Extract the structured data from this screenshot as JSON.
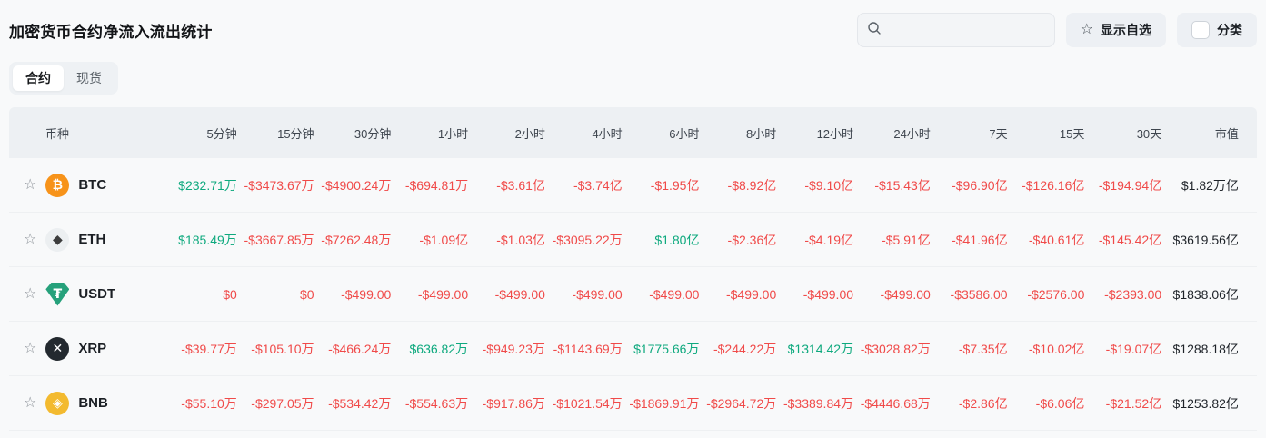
{
  "header": {
    "title": "加密货币合约净流入流出统计",
    "search": {
      "placeholder": "",
      "value": ""
    },
    "favorites_button": {
      "label": "显示自选",
      "icon": "star-outline"
    },
    "category_button": {
      "label": "分类",
      "checkbox_checked": false
    }
  },
  "tabs": [
    {
      "label": "合约",
      "active": true
    },
    {
      "label": "现货",
      "active": false
    }
  ],
  "colors": {
    "up": "#0EA97E",
    "down": "#F04A49",
    "neutral": "#1E2329"
  },
  "table": {
    "columns": [
      "币种",
      "5分钟",
      "15分钟",
      "30分钟",
      "1小时",
      "2小时",
      "4小时",
      "6小时",
      "8小时",
      "12小时",
      "24小时",
      "7天",
      "15天",
      "30天",
      "市值"
    ],
    "rows": [
      {
        "symbol": "BTC",
        "icon": {
          "glyph": "₿",
          "bg": "#F7931A",
          "fg": "#ffffff",
          "shape": "circle"
        },
        "values": [
          {
            "text": "$232.71万",
            "trend": "up"
          },
          {
            "text": "-$3473.67万",
            "trend": "down"
          },
          {
            "text": "-$4900.24万",
            "trend": "down"
          },
          {
            "text": "-$694.81万",
            "trend": "down"
          },
          {
            "text": "-$3.61亿",
            "trend": "down"
          },
          {
            "text": "-$3.74亿",
            "trend": "down"
          },
          {
            "text": "-$1.95亿",
            "trend": "down"
          },
          {
            "text": "-$8.92亿",
            "trend": "down"
          },
          {
            "text": "-$9.10亿",
            "trend": "down"
          },
          {
            "text": "-$15.43亿",
            "trend": "down"
          },
          {
            "text": "-$96.90亿",
            "trend": "down"
          },
          {
            "text": "-$126.16亿",
            "trend": "down"
          },
          {
            "text": "-$194.94亿",
            "trend": "down"
          }
        ],
        "market_cap": "$1.82万亿"
      },
      {
        "symbol": "ETH",
        "icon": {
          "glyph": "◆",
          "bg": "#ECEFF1",
          "fg": "#3C3C3D",
          "shape": "circle"
        },
        "values": [
          {
            "text": "$185.49万",
            "trend": "up"
          },
          {
            "text": "-$3667.85万",
            "trend": "down"
          },
          {
            "text": "-$7262.48万",
            "trend": "down"
          },
          {
            "text": "-$1.09亿",
            "trend": "down"
          },
          {
            "text": "-$1.03亿",
            "trend": "down"
          },
          {
            "text": "-$3095.22万",
            "trend": "down"
          },
          {
            "text": "$1.80亿",
            "trend": "up"
          },
          {
            "text": "-$2.36亿",
            "trend": "down"
          },
          {
            "text": "-$4.19亿",
            "trend": "down"
          },
          {
            "text": "-$5.91亿",
            "trend": "down"
          },
          {
            "text": "-$41.96亿",
            "trend": "down"
          },
          {
            "text": "-$40.61亿",
            "trend": "down"
          },
          {
            "text": "-$145.42亿",
            "trend": "down"
          }
        ],
        "market_cap": "$3619.56亿"
      },
      {
        "symbol": "USDT",
        "icon": {
          "glyph": "₮",
          "bg": "#26A17B",
          "fg": "#ffffff",
          "shape": "shield"
        },
        "values": [
          {
            "text": "$0",
            "trend": "down"
          },
          {
            "text": "$0",
            "trend": "down"
          },
          {
            "text": "-$499.00",
            "trend": "down"
          },
          {
            "text": "-$499.00",
            "trend": "down"
          },
          {
            "text": "-$499.00",
            "trend": "down"
          },
          {
            "text": "-$499.00",
            "trend": "down"
          },
          {
            "text": "-$499.00",
            "trend": "down"
          },
          {
            "text": "-$499.00",
            "trend": "down"
          },
          {
            "text": "-$499.00",
            "trend": "down"
          },
          {
            "text": "-$499.00",
            "trend": "down"
          },
          {
            "text": "-$3586.00",
            "trend": "down"
          },
          {
            "text": "-$2576.00",
            "trend": "down"
          },
          {
            "text": "-$2393.00",
            "trend": "down"
          }
        ],
        "market_cap": "$1838.06亿"
      },
      {
        "symbol": "XRP",
        "icon": {
          "glyph": "✕",
          "bg": "#23292F",
          "fg": "#ffffff",
          "shape": "circle"
        },
        "values": [
          {
            "text": "-$39.77万",
            "trend": "down"
          },
          {
            "text": "-$105.10万",
            "trend": "down"
          },
          {
            "text": "-$466.24万",
            "trend": "down"
          },
          {
            "text": "$636.82万",
            "trend": "up"
          },
          {
            "text": "-$949.23万",
            "trend": "down"
          },
          {
            "text": "-$1143.69万",
            "trend": "down"
          },
          {
            "text": "$1775.66万",
            "trend": "up"
          },
          {
            "text": "-$244.22万",
            "trend": "down"
          },
          {
            "text": "$1314.42万",
            "trend": "up"
          },
          {
            "text": "-$3028.82万",
            "trend": "down"
          },
          {
            "text": "-$7.35亿",
            "trend": "down"
          },
          {
            "text": "-$10.02亿",
            "trend": "down"
          },
          {
            "text": "-$19.07亿",
            "trend": "down"
          }
        ],
        "market_cap": "$1288.18亿"
      },
      {
        "symbol": "BNB",
        "icon": {
          "glyph": "◈",
          "bg": "#F3BA2F",
          "fg": "#ffffff",
          "shape": "circle"
        },
        "values": [
          {
            "text": "-$55.10万",
            "trend": "down"
          },
          {
            "text": "-$297.05万",
            "trend": "down"
          },
          {
            "text": "-$534.42万",
            "trend": "down"
          },
          {
            "text": "-$554.63万",
            "trend": "down"
          },
          {
            "text": "-$917.86万",
            "trend": "down"
          },
          {
            "text": "-$1021.54万",
            "trend": "down"
          },
          {
            "text": "-$1869.91万",
            "trend": "down"
          },
          {
            "text": "-$2964.72万",
            "trend": "down"
          },
          {
            "text": "-$3389.84万",
            "trend": "down"
          },
          {
            "text": "-$4446.68万",
            "trend": "down"
          },
          {
            "text": "-$2.86亿",
            "trend": "down"
          },
          {
            "text": "-$6.06亿",
            "trend": "down"
          },
          {
            "text": "-$21.52亿",
            "trend": "down"
          }
        ],
        "market_cap": "$1253.82亿"
      }
    ]
  }
}
